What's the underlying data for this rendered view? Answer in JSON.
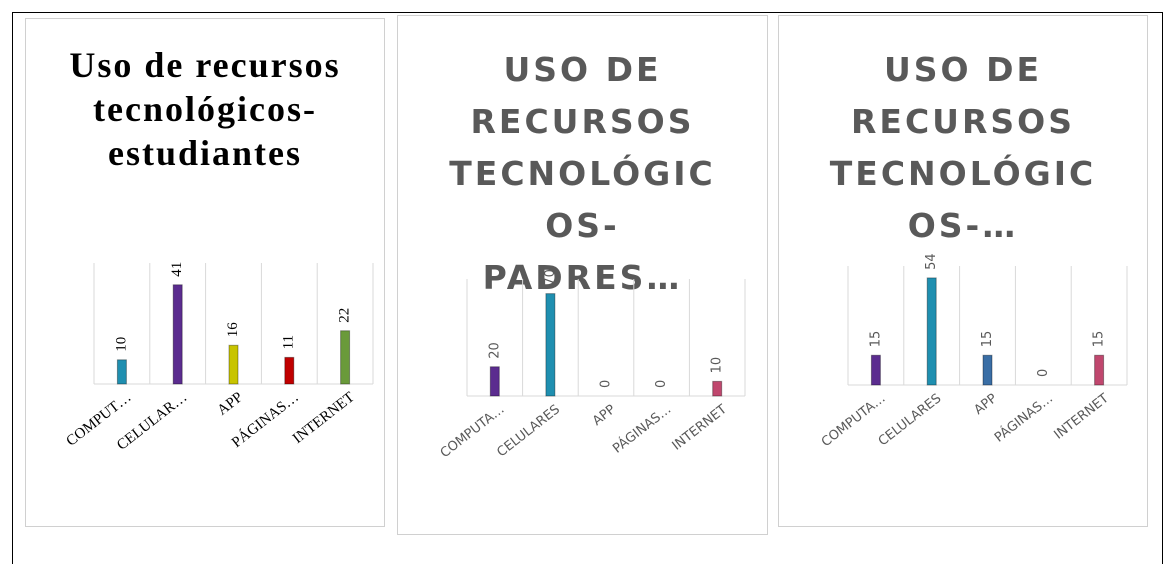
{
  "chart_data": [
    {
      "type": "bar",
      "title": "Uso de recursos tecnológicos-estudiantes",
      "categories": [
        "COMPUT…",
        "CELULAR…",
        "APP",
        "PÁGINAS…",
        "INTERNET"
      ],
      "values": [
        10,
        41,
        16,
        11,
        22
      ],
      "colors": [
        "#1f8fb0",
        "#5b2c8f",
        "#c8c400",
        "#c00000",
        "#6a9a3a"
      ],
      "ylim": [
        0,
        50
      ]
    },
    {
      "type": "bar",
      "title": "USO DE RECURSOS TECNOLÓGICOS-PADRES…",
      "categories": [
        "COMPUTA…",
        "CELULARES",
        "APP",
        "PÁGINAS…",
        "INTERNET"
      ],
      "values": [
        20,
        70,
        0,
        0,
        10
      ],
      "colors": [
        "#5b2c8f",
        "#1f8fb0",
        "#c8c400",
        "#c00000",
        "#c0476e"
      ],
      "ylim": [
        0,
        80
      ]
    },
    {
      "type": "bar",
      "title": "USO DE RECURSOS TECNOLÓGICOS-…",
      "categories": [
        "COMPUTA…",
        "CELULARES",
        "APP",
        "PÁGINAS…",
        "INTERNET"
      ],
      "values": [
        15,
        54,
        15,
        0,
        15
      ],
      "colors": [
        "#5b2c8f",
        "#1f8fb0",
        "#3a6ea5",
        "#c00000",
        "#c0476e"
      ],
      "ylim": [
        0,
        60
      ]
    }
  ]
}
